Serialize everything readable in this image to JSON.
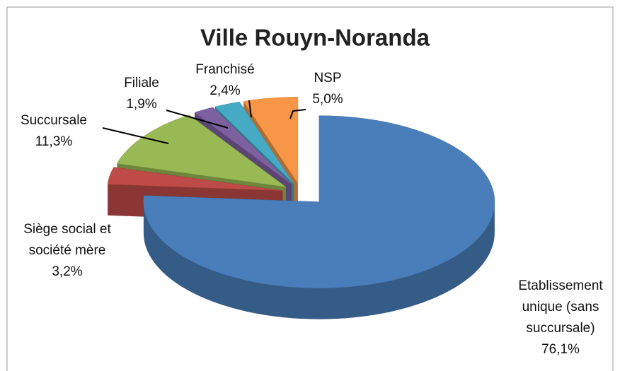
{
  "chart_data": {
    "type": "pie",
    "title": "Ville Rouyn-Noranda",
    "categories": [
      "Etablissement unique (sans succursale)",
      "Siège social et société mère",
      "Succursale",
      "Filiale",
      "Franchisé",
      "NSP"
    ],
    "values": [
      76.1,
      3.2,
      11.3,
      1.9,
      2.4,
      5.0
    ],
    "value_labels": [
      "76,1%",
      "3,2%",
      "11,3%",
      "1,9%",
      "2,4%",
      "5,0%"
    ],
    "colors": [
      "#4a7ebb",
      "#be4b48",
      "#98b954",
      "#7d60a0",
      "#46aac5",
      "#f79646"
    ]
  }
}
